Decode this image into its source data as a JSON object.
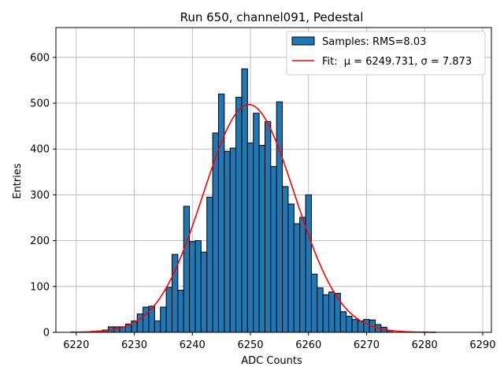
{
  "chart_data": {
    "type": "bar",
    "title": "Run 650, channel091, Pedestal",
    "xlabel": "ADC Counts",
    "ylabel": "Entries",
    "xlim": [
      6216.5,
      6291.5
    ],
    "ylim": [
      0,
      665
    ],
    "xticks": [
      6220,
      6230,
      6240,
      6250,
      6260,
      6270,
      6280,
      6290
    ],
    "yticks": [
      0,
      100,
      200,
      300,
      400,
      500,
      600
    ],
    "grid": true,
    "legend_position": "top-right",
    "bar_color": "#1f77b4",
    "fit_color": "#ff0000",
    "bin_width": 1,
    "histogram": {
      "name": "Samples: RMS=8.03",
      "bin_centers": [
        6223,
        6224,
        6225,
        6226,
        6227,
        6228,
        6229,
        6230,
        6231,
        6232,
        6233,
        6234,
        6235,
        6236,
        6237,
        6238,
        6239,
        6240,
        6241,
        6242,
        6243,
        6244,
        6245,
        6246,
        6247,
        6248,
        6249,
        6250,
        6251,
        6252,
        6253,
        6254,
        6255,
        6256,
        6257,
        6258,
        6259,
        6260,
        6261,
        6262,
        6263,
        6264,
        6265,
        6266,
        6267,
        6268,
        6269,
        6270,
        6271,
        6272,
        6273,
        6274
      ],
      "values": [
        2,
        3,
        5,
        12,
        12,
        12,
        18,
        25,
        40,
        55,
        57,
        25,
        55,
        98,
        170,
        92,
        275,
        198,
        200,
        175,
        295,
        435,
        520,
        395,
        402,
        513,
        575,
        413,
        478,
        408,
        460,
        362,
        503,
        318,
        280,
        237,
        251,
        300,
        127,
        97,
        82,
        88,
        85,
        45,
        35,
        28,
        25,
        28,
        27,
        17,
        11,
        4
      ]
    },
    "fit": {
      "name_prefix": "Fit: ",
      "name_text": "μ = 6249.731, σ = 7.873",
      "mu": 6249.731,
      "sigma": 7.873,
      "amplitude": 497,
      "x_range": [
        6219,
        6282
      ]
    }
  }
}
